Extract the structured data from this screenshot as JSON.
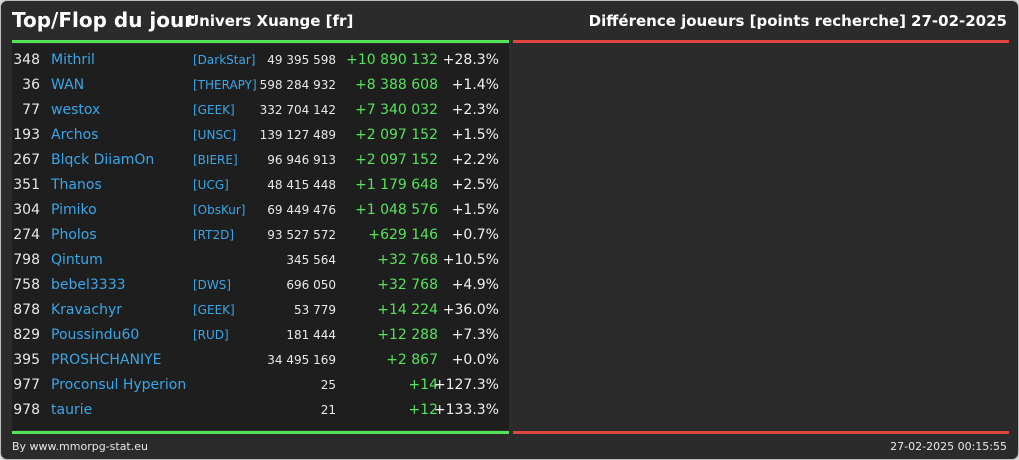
{
  "header": {
    "title": "Top/Flop du jour",
    "universe": "Univers Xuange [fr]",
    "metric": "Différence joueurs [points recherche]",
    "date": "27-02-2025"
  },
  "colors": {
    "accent_gain": "#55e35a",
    "accent_loss": "#e0443f",
    "player_link": "#3aa6e8"
  },
  "top_players": [
    {
      "rank": "348",
      "name": "Mithril",
      "alliance": "[DarkStar]",
      "score": "49 395 598",
      "diff": "+10 890 132",
      "pct": "+28.3%"
    },
    {
      "rank": "36",
      "name": "WAN",
      "alliance": "[THERAPY]",
      "score": "598 284 932",
      "diff": "+8 388 608",
      "pct": "+1.4%"
    },
    {
      "rank": "77",
      "name": "westox",
      "alliance": "[GEEK]",
      "score": "332 704 142",
      "diff": "+7 340 032",
      "pct": "+2.3%"
    },
    {
      "rank": "193",
      "name": "Archos",
      "alliance": "[UNSC]",
      "score": "139 127 489",
      "diff": "+2 097 152",
      "pct": "+1.5%"
    },
    {
      "rank": "267",
      "name": "Blqck DiiamOn",
      "alliance": "[BIERE]",
      "score": "96 946 913",
      "diff": "+2 097 152",
      "pct": "+2.2%"
    },
    {
      "rank": "351",
      "name": "Thanos",
      "alliance": "[UCG]",
      "score": "48 415 448",
      "diff": "+1 179 648",
      "pct": "+2.5%"
    },
    {
      "rank": "304",
      "name": "Pimiko",
      "alliance": "[ObsKur]",
      "score": "69 449 476",
      "diff": "+1 048 576",
      "pct": "+1.5%"
    },
    {
      "rank": "274",
      "name": "Pholos",
      "alliance": "[RT2D]",
      "score": "93 527 572",
      "diff": "+629 146",
      "pct": "+0.7%"
    },
    {
      "rank": "798",
      "name": "Qintum",
      "alliance": "",
      "score": "345 564",
      "diff": "+32 768",
      "pct": "+10.5%"
    },
    {
      "rank": "758",
      "name": "bebel3333",
      "alliance": "[DWS]",
      "score": "696 050",
      "diff": "+32 768",
      "pct": "+4.9%"
    },
    {
      "rank": "878",
      "name": "Kravachyr",
      "alliance": "[GEEK]",
      "score": "53 779",
      "diff": "+14 224",
      "pct": "+36.0%"
    },
    {
      "rank": "829",
      "name": "Poussindu60",
      "alliance": "[RUD]",
      "score": "181 444",
      "diff": "+12 288",
      "pct": "+7.3%"
    },
    {
      "rank": "395",
      "name": "PROSHCHANIYE",
      "alliance": "",
      "score": "34 495 169",
      "diff": "+2 867",
      "pct": "+0.0%"
    },
    {
      "rank": "977",
      "name": "Proconsul Hyperion",
      "alliance": "",
      "score": "25",
      "diff": "+14",
      "pct": "+127.3%"
    },
    {
      "rank": "978",
      "name": "taurie",
      "alliance": "",
      "score": "21",
      "diff": "+12",
      "pct": "+133.3%"
    }
  ],
  "footer": {
    "credit": "By www.mmorpg-stat.eu",
    "timestamp": "27-02-2025 00:15:55"
  }
}
